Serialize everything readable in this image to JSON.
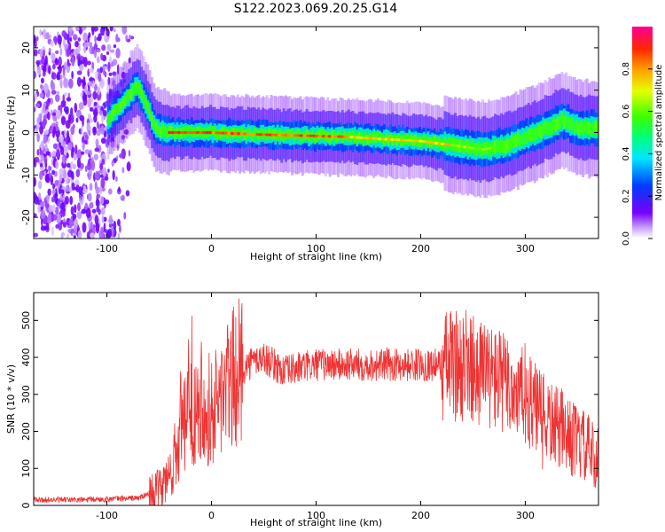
{
  "title": "S122.2023.069.20.25.G14",
  "chart_data": [
    {
      "type": "heatmap",
      "xlabel": "Height of straight line (km)",
      "ylabel": "Frequency (Hz)",
      "xlim": [
        -170,
        370
      ],
      "ylim": [
        -25,
        25
      ],
      "xticks": [
        -100,
        0,
        100,
        200,
        300
      ],
      "yticks": [
        -20,
        -10,
        0,
        10,
        20
      ],
      "colorbar": {
        "label": "Normalized spectral amplitude",
        "range": [
          0,
          1
        ],
        "ticks": [
          0.0,
          0.2,
          0.4,
          0.6,
          0.8
        ]
      },
      "ridge": {
        "x": [
          -100,
          -85,
          -72,
          -62,
          -55,
          -45,
          -20,
          0,
          50,
          100,
          130,
          160,
          200,
          230,
          260,
          280,
          300,
          320,
          335,
          350,
          370
        ],
        "y": [
          3,
          7,
          11,
          6,
          1,
          0,
          0,
          0,
          -0.5,
          -0.8,
          -1,
          -1.5,
          -2,
          -3,
          -4,
          -3,
          -1,
          1,
          3,
          1,
          1
        ]
      },
      "noise_region_x": [
        -170,
        -80
      ]
    },
    {
      "type": "line",
      "xlabel": "Height of straight line (km)",
      "ylabel": "SNR (10 * v/v)",
      "xlim": [
        -170,
        370
      ],
      "ylim": [
        0,
        575
      ],
      "xticks": [
        -100,
        0,
        100,
        200,
        300
      ],
      "yticks": [
        0,
        100,
        200,
        300,
        400,
        500
      ],
      "series": [
        {
          "color": "#ee3333",
          "x": [
            -170,
            -120,
            -70,
            -50,
            -40,
            -30,
            -20,
            -10,
            0,
            10,
            20,
            30,
            40,
            50,
            60,
            70,
            80,
            100,
            150,
            200,
            240,
            260,
            280,
            300,
            320,
            340,
            360,
            370
          ],
          "y": [
            15,
            15,
            20,
            40,
            80,
            180,
            250,
            300,
            250,
            300,
            340,
            370,
            390,
            400,
            380,
            360,
            370,
            380,
            380,
            380,
            380,
            360,
            330,
            290,
            230,
            190,
            150,
            120
          ]
        }
      ]
    }
  ]
}
